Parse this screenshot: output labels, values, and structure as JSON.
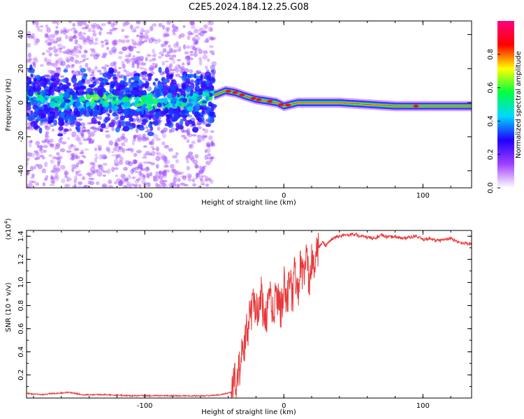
{
  "title": "C2E5.2024.184.12.25.G08",
  "chart_data": [
    {
      "type": "heatmap",
      "name": "spectrogram",
      "xlabel": "Height of straight line (km)",
      "ylabel": "Frequency (Hz)",
      "xlim": [
        -185,
        135
      ],
      "ylim": [
        -50,
        48
      ],
      "xticks": [
        -100,
        0,
        100
      ],
      "yticks": [
        -40,
        -20,
        0,
        20,
        40
      ],
      "xtick_labels": [
        "-100",
        "0",
        "100"
      ],
      "ytick_labels": [
        "-40",
        "-20",
        "0",
        "20",
        "40"
      ],
      "colorbar": {
        "label": "Normalized spectral amplitude",
        "range": [
          0,
          1
        ],
        "ticks": [
          0.0,
          0.2,
          0.4,
          0.6,
          0.8
        ],
        "tick_labels": [
          "0.0",
          "0.2",
          "0.4",
          "0.6",
          "0.8"
        ],
        "colors": [
          "#ffffff",
          "#a040ff",
          "#2000ff",
          "#00d8ff",
          "#00ff40",
          "#ffff00",
          "#ff0000",
          "#ff0080"
        ]
      },
      "ridge": {
        "x": [
          -185,
          -170,
          -150,
          -130,
          -110,
          -90,
          -70,
          -55,
          -48,
          -42,
          -35,
          -28,
          -20,
          -12,
          -5,
          0,
          5,
          10,
          20,
          40,
          60,
          80,
          100,
          120,
          135
        ],
        "y": [
          3,
          1,
          0,
          2,
          -1,
          1,
          0,
          3,
          5,
          7,
          6,
          4,
          2,
          1,
          0,
          -2,
          -1,
          0,
          0,
          0,
          -1,
          -2,
          -2,
          -2,
          -2
        ]
      }
    },
    {
      "type": "line",
      "name": "snr",
      "xlabel": "Height of straight line (km)",
      "ylabel": "SNR (10 * v/v)",
      "ylabel_scale": "(x10",
      "ylabel_exponent": "4",
      "xlim": [
        -185,
        135
      ],
      "ylim": [
        0,
        1.45
      ],
      "xticks": [
        -100,
        0,
        100
      ],
      "yticks": [
        0.2,
        0.4,
        0.6,
        0.8,
        1.0,
        1.2,
        1.4
      ],
      "xtick_labels": [
        "-100",
        "0",
        "100"
      ],
      "ytick_labels": [
        "0.2",
        "0.4",
        "0.6",
        "0.8",
        "1.0",
        "1.2",
        "1.4"
      ],
      "color": "#e8393a",
      "series": [
        {
          "x": [
            -185,
            -175,
            -165,
            -155,
            -145,
            -130,
            -110,
            -90,
            -70,
            -55,
            -45,
            -38,
            -35,
            -32,
            -30,
            -28,
            -26,
            -24,
            -22,
            -20,
            -18,
            -16,
            -14,
            -12,
            -10,
            -8,
            -6,
            -4,
            -2,
            0,
            2,
            4,
            6,
            8,
            10,
            12,
            14,
            16,
            18,
            20,
            22,
            25,
            28,
            30,
            35,
            40,
            45,
            50,
            55,
            60,
            65,
            70,
            75,
            80,
            85,
            90,
            95,
            100,
            105,
            110,
            115,
            120,
            125,
            130,
            135
          ],
          "y": [
            0.04,
            0.03,
            0.04,
            0.05,
            0.03,
            0.03,
            0.02,
            0.02,
            0.02,
            0.02,
            0.03,
            0.05,
            0.15,
            0.25,
            0.35,
            0.5,
            0.6,
            0.75,
            0.8,
            0.85,
            0.7,
            0.9,
            0.6,
            0.75,
            0.95,
            0.7,
            0.85,
            0.9,
            0.75,
            1.0,
            0.8,
            1.05,
            0.85,
            1.1,
            0.9,
            1.15,
            1.05,
            1.2,
            1.0,
            1.25,
            1.15,
            1.3,
            1.35,
            1.32,
            1.38,
            1.4,
            1.41,
            1.42,
            1.4,
            1.39,
            1.38,
            1.41,
            1.39,
            1.4,
            1.38,
            1.39,
            1.4,
            1.37,
            1.38,
            1.36,
            1.37,
            1.38,
            1.35,
            1.34,
            1.33
          ]
        }
      ]
    }
  ]
}
